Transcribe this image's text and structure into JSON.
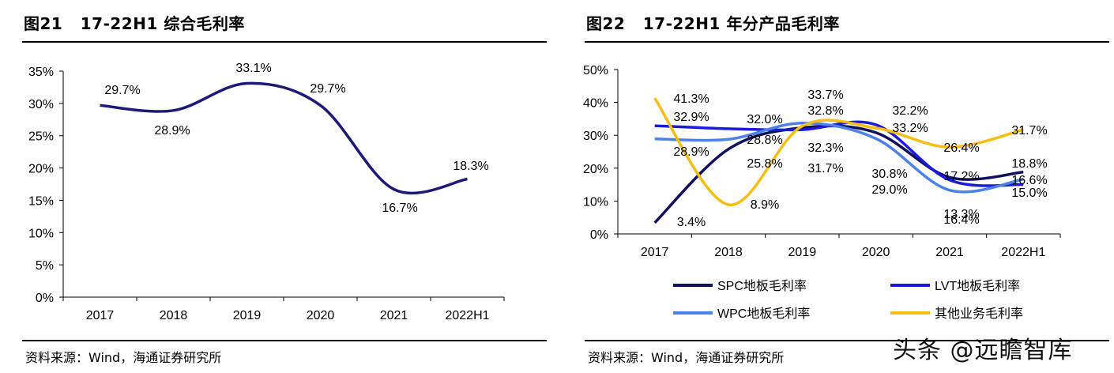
{
  "watermark": "头条 @远瞻智库",
  "chart_data": [
    {
      "type": "line",
      "figure_label": "图21",
      "title": "17-22H1 综合毛利率",
      "source": "资料来源：Wind，海通证券研究所",
      "categories": [
        "2017",
        "2018",
        "2019",
        "2020",
        "2021",
        "2022H1"
      ],
      "series": [
        {
          "name": "综合毛利率",
          "color": "#1c1a78",
          "values": [
            29.7,
            28.9,
            33.1,
            29.7,
            16.7,
            18.3
          ],
          "labels": [
            "29.7%",
            "28.9%",
            "33.1%",
            "29.7%",
            "16.7%",
            "18.3%"
          ]
        }
      ],
      "ylim": [
        0,
        35
      ],
      "yticks": [
        "0%",
        "5%",
        "10%",
        "15%",
        "20%",
        "25%",
        "30%",
        "35%"
      ],
      "grid": false,
      "legend": "none"
    },
    {
      "type": "line",
      "figure_label": "图22",
      "title": "17-22H1 年分产品毛利率",
      "source": "资料来源：Wind，海通证券研究所",
      "categories": [
        "2017",
        "2018",
        "2019",
        "2020",
        "2021",
        "2022H1"
      ],
      "series": [
        {
          "name": "SPC地板毛利率",
          "color": "#101060",
          "values": [
            3.4,
            25.8,
            32.3,
            30.8,
            17.2,
            18.8
          ],
          "labels": [
            "3.4%",
            "25.8%",
            "32.3%",
            "30.8%",
            "17.2%",
            "18.8%"
          ]
        },
        {
          "name": "LVT地板毛利率",
          "color": "#1a1adc",
          "values": [
            32.9,
            32.0,
            31.7,
            33.2,
            16.4,
            15.0
          ],
          "labels": [
            "32.9%",
            "32.0%",
            "31.7%",
            "33.2%",
            "16.4%",
            "15.0%"
          ]
        },
        {
          "name": "WPC地板毛利率",
          "color": "#4a82ea",
          "values": [
            28.9,
            28.8,
            33.7,
            29.0,
            13.3,
            16.6
          ],
          "labels": [
            "28.9%",
            "28.8%",
            "33.7%",
            "29.0%",
            "13.3%",
            "16.6%"
          ]
        },
        {
          "name": "其他业务毛利率",
          "color": "#f7bd12",
          "values": [
            41.3,
            8.9,
            32.8,
            32.2,
            26.4,
            31.7
          ],
          "labels": [
            "41.3%",
            "8.9%",
            "32.8%",
            "32.2%",
            "26.4%",
            "31.7%"
          ]
        }
      ],
      "ylim": [
        0,
        50
      ],
      "yticks": [
        "0%",
        "10%",
        "20%",
        "30%",
        "40%",
        "50%"
      ],
      "grid": false,
      "legend": "bottom"
    }
  ]
}
